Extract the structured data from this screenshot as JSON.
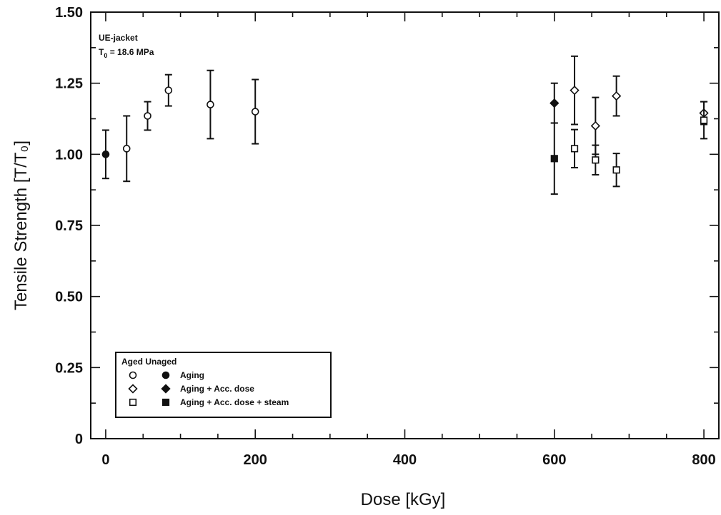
{
  "chart_data": {
    "type": "scatter",
    "xlabel": "Dose [kGy]",
    "ylabel": "Tensile Strength [T/T₀]",
    "xlim": [
      -20,
      820
    ],
    "ylim": [
      0,
      1.5
    ],
    "x_ticks": [
      0,
      200,
      400,
      600,
      800
    ],
    "x_tick_labels": [
      "0",
      "200",
      "400",
      "600",
      "800"
    ],
    "y_ticks": [
      0,
      0.25,
      0.5,
      0.75,
      1.0,
      1.25,
      1.5
    ],
    "y_tick_labels": [
      "0",
      "0.25",
      "0.50",
      "0.75",
      "1.00",
      "1.25",
      "1.50"
    ],
    "grid": false,
    "annotation": {
      "line1": "UE-jacket",
      "line2_prefix": "T",
      "line2_sub": "0",
      "line2_rest": " = 18.6 MPa"
    },
    "legend": {
      "placement": "bottom-left",
      "header": "Aged Unaged",
      "entries": [
        {
          "label": "Aging",
          "marker": "circle"
        },
        {
          "label": "Aging + Acc. dose",
          "marker": "diamond"
        },
        {
          "label": "Aging + Acc. dose + steam",
          "marker": "square"
        }
      ]
    },
    "series": [
      {
        "marker": "circle",
        "filled": true,
        "points": [
          {
            "x": 0,
            "y": 1.0,
            "err": 0.085
          }
        ]
      },
      {
        "marker": "circle",
        "filled": false,
        "points": [
          {
            "x": 28,
            "y": 1.02,
            "err": 0.115
          },
          {
            "x": 56,
            "y": 1.135,
            "err": 0.05
          },
          {
            "x": 84,
            "y": 1.225,
            "err": 0.055
          },
          {
            "x": 140,
            "y": 1.175,
            "err": 0.12
          },
          {
            "x": 200,
            "y": 1.15,
            "err": 0.113
          }
        ]
      },
      {
        "marker": "diamond",
        "filled": true,
        "points": [
          {
            "x": 600,
            "y": 1.18,
            "err": 0.07
          }
        ]
      },
      {
        "marker": "diamond",
        "filled": false,
        "points": [
          {
            "x": 627,
            "y": 1.225,
            "err": 0.12
          },
          {
            "x": 655,
            "y": 1.1,
            "err": 0.1
          },
          {
            "x": 683,
            "y": 1.205,
            "err": 0.07
          },
          {
            "x": 800,
            "y": 1.145,
            "err": 0.04
          }
        ]
      },
      {
        "marker": "square",
        "filled": true,
        "points": [
          {
            "x": 600,
            "y": 0.985,
            "err": 0.125
          }
        ]
      },
      {
        "marker": "square",
        "filled": false,
        "points": [
          {
            "x": 627,
            "y": 1.02,
            "err": 0.067
          },
          {
            "x": 655,
            "y": 0.98,
            "err": 0.052
          },
          {
            "x": 683,
            "y": 0.945,
            "err": 0.058
          },
          {
            "x": 800,
            "y": 1.12,
            "err": 0.065
          }
        ]
      }
    ]
  }
}
